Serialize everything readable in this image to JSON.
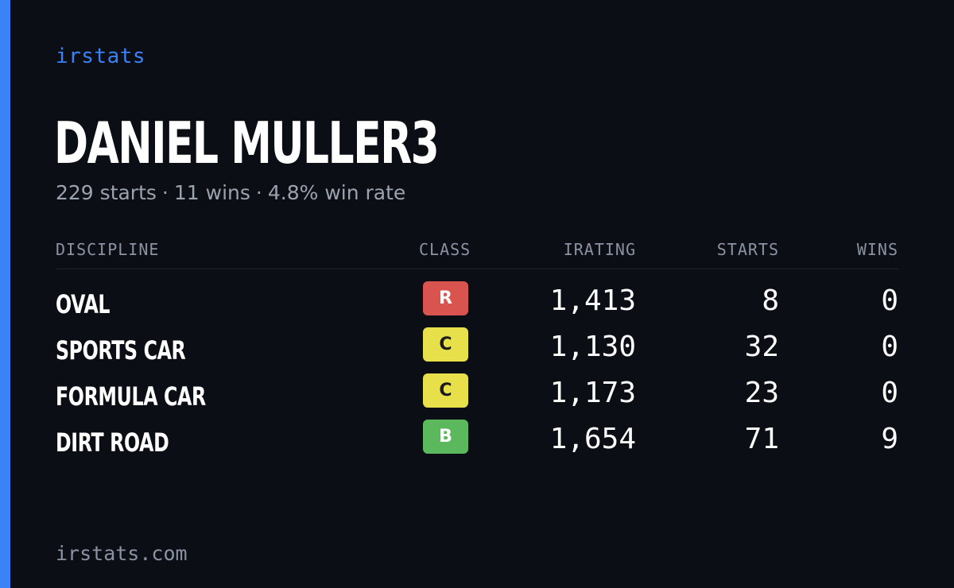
{
  "brand": "irstats",
  "driver": {
    "name": "DANIEL MULLER3",
    "starts_text": "229 starts",
    "wins_text": "11 wins",
    "win_rate_text": "4.8% win rate",
    "separator": "·"
  },
  "table": {
    "headers": {
      "discipline": "DISCIPLINE",
      "class": "CLASS",
      "irating": "IRATING",
      "starts": "STARTS",
      "wins": "WINS"
    },
    "rows": [
      {
        "discipline": "OVAL",
        "class": "R",
        "class_bg": "#d9534f",
        "class_fg": "#ffffff",
        "irating": "1,413",
        "starts": "8",
        "wins": "0"
      },
      {
        "discipline": "SPORTS CAR",
        "class": "C",
        "class_bg": "#e8e04a",
        "class_fg": "#1a1a1a",
        "irating": "1,130",
        "starts": "32",
        "wins": "0"
      },
      {
        "discipline": "FORMULA CAR",
        "class": "C",
        "class_bg": "#e8e04a",
        "class_fg": "#1a1a1a",
        "irating": "1,173",
        "starts": "23",
        "wins": "0"
      },
      {
        "discipline": "DIRT ROAD",
        "class": "B",
        "class_bg": "#5cb85c",
        "class_fg": "#ffffff",
        "irating": "1,654",
        "starts": "71",
        "wins": "9"
      }
    ]
  },
  "footer": "irstats.com",
  "colors": {
    "background": "#0b0e15",
    "accent": "#3b82f6",
    "muted_text": "#9ca3af"
  }
}
